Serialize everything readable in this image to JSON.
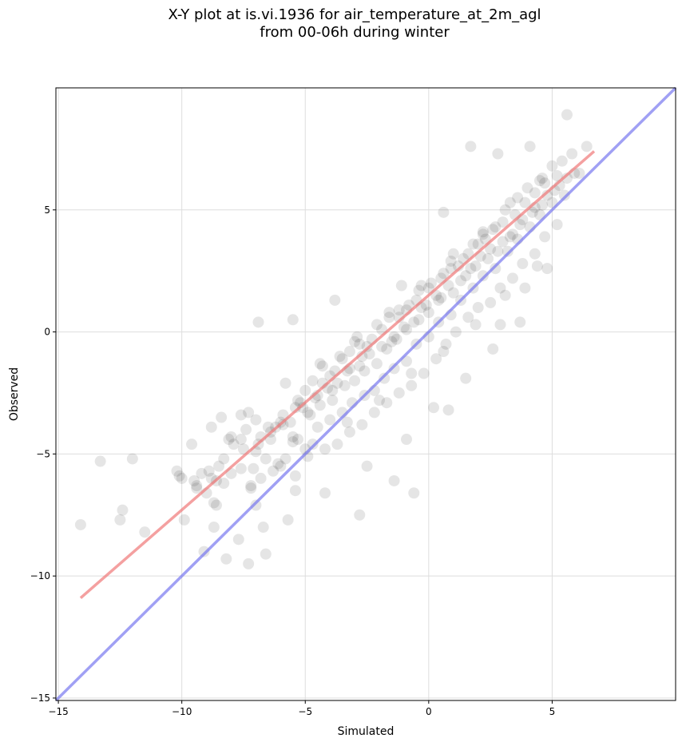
{
  "chart_data": {
    "type": "scatter",
    "title_line1": "X-Y plot at is.vi.1936 for air_temperature_at_2m_agl",
    "title_line2": "from 00-06h during winter",
    "xlabel": "Simulated",
    "ylabel": "Observed",
    "xlim": [
      -15.1,
      10.0
    ],
    "ylim": [
      -15.1,
      10.0
    ],
    "xticks": [
      -15,
      -10,
      -5,
      0,
      5
    ],
    "yticks": [
      -15,
      -10,
      -5,
      0,
      5
    ],
    "xtick_labels": [
      "−15",
      "−10",
      "−5",
      "0",
      "5"
    ],
    "ytick_labels": [
      "−15",
      "−10",
      "−5",
      "0",
      "5"
    ],
    "grid": true,
    "point_color": "#000000",
    "fit_line": {
      "x": [
        -14.1,
        6.7
      ],
      "y": [
        -10.9,
        7.4
      ],
      "color": "#f07878"
    },
    "identity_line": {
      "x": [
        -15.1,
        10.0
      ],
      "y": [
        -15.1,
        10.0
      ],
      "color": "#7878f0"
    },
    "points": {
      "x": [
        -14.1,
        -13.3,
        -12.0,
        -12.4,
        -12.5,
        -11.5,
        -10.1,
        -10.0,
        -9.9,
        -9.6,
        -9.5,
        -9.4,
        -9.2,
        -9.0,
        -8.8,
        -8.7,
        -8.6,
        -8.7,
        -8.5,
        -8.4,
        -8.1,
        -8.3,
        -7.9,
        -7.6,
        -7.4,
        -7.3,
        -7.1,
        -7.0,
        -6.8,
        -6.4,
        -6.0,
        -5.8,
        -5.5,
        -5.4,
        -5.2,
        -4.9,
        -4.5,
        -4.3,
        -3.9,
        -3.8,
        -3.5,
        -3.2,
        -2.8,
        -2.7,
        -2.3,
        -1.9,
        -1.5,
        -1.2,
        -0.9,
        -0.5,
        -0.3,
        0.0,
        0.3,
        0.6,
        0.9,
        1.2,
        1.6,
        2.0,
        2.3,
        2.6,
        3.0,
        3.5,
        3.9,
        4.3,
        4.7,
        5.2,
        5.8,
        -7.0,
        -6.5,
        -5.9,
        -5.3,
        -5.0,
        -4.7,
        -4.3,
        -4.0,
        -3.6,
        -3.2,
        -2.9,
        -2.5,
        -2.1,
        -1.6,
        -1.2,
        -0.8,
        -0.4,
        0.1,
        0.5,
        0.9,
        1.4,
        1.8,
        2.2,
        2.7,
        3.1,
        3.6,
        4.0,
        4.5,
        5.0,
        5.4,
        -8.0,
        -7.5,
        -6.9,
        -6.2,
        -5.6,
        -5.1,
        -4.6,
        -4.1,
        -3.7,
        -3.3,
        -2.8,
        -2.4,
        -1.9,
        -1.4,
        -1.0,
        -0.6,
        -0.1,
        0.4,
        0.8,
        1.3,
        1.7,
        2.1,
        2.5,
        3.0,
        3.4,
        3.8,
        4.3,
        4.8,
        5.3,
        5.9,
        -8.9,
        -8.3,
        -7.6,
        -7.0,
        -6.4,
        -5.9,
        -5.3,
        -4.8,
        -4.4,
        -3.9,
        -3.4,
        -3.0,
        -2.6,
        -2.1,
        -1.7,
        -1.3,
        -0.9,
        -0.4,
        0.0,
        0.5,
        1.0,
        1.5,
        1.9,
        2.4,
        2.8,
        3.3,
        3.7,
        4.2,
        4.6,
        5.1,
        5.6,
        6.1,
        -10.2,
        -9.4,
        -8.8,
        -8.0,
        -7.2,
        -6.6,
        -6.0,
        -5.5,
        -5.0,
        -4.5,
        -4.0,
        -3.5,
        -3.1,
        -2.6,
        -2.2,
        -1.8,
        -1.4,
        -0.9,
        -0.5,
        0.0,
        0.4,
        0.9,
        1.3,
        1.8,
        2.2,
        2.7,
        3.2,
        3.6,
        4.1,
        4.5,
        5.0,
        5.5,
        -7.2,
        -6.8,
        -6.1,
        -5.4,
        -4.9,
        -4.2,
        -3.7,
        -3.2,
        -2.7,
        -2.2,
        -1.7,
        -1.2,
        -0.7,
        -0.2,
        0.3,
        0.7,
        1.1,
        1.6,
        2.0,
        2.5,
        2.9,
        3.4,
        3.8,
        4.3,
        4.7,
        5.2,
        -7.6,
        -5.8,
        -4.4,
        -3.0,
        -1.6,
        -0.3,
        1.0,
        2.2,
        3.3,
        4.6,
        -8.6,
        -6.3,
        -4.7,
        -3.3,
        -2.0,
        -0.7,
        0.6,
        1.9,
        3.1,
        4.4,
        -9.1,
        -7.7,
        -6.6,
        -5.7,
        -4.2,
        -2.5,
        -0.9,
        0.2,
        1.5,
        2.6,
        3.7,
        4.8,
        -8.2,
        -7.3,
        -6.7,
        -5.4,
        -2.8,
        -1.4,
        -0.6,
        0.8,
        2.9,
        3.9,
        -6.9,
        -5.5,
        -3.8,
        -1.1,
        0.6,
        1.7,
        2.8,
        4.1,
        5.6,
        6.4
      ],
      "y": [
        -7.9,
        -5.3,
        -5.2,
        -7.3,
        -7.7,
        -8.2,
        -5.9,
        -6.0,
        -7.7,
        -4.6,
        -6.1,
        -6.4,
        -5.8,
        -6.6,
        -3.9,
        -7.0,
        -6.1,
        -8.0,
        -5.5,
        -3.5,
        -4.4,
        -6.2,
        -4.6,
        -4.4,
        -4.0,
        -3.3,
        -5.6,
        -7.1,
        -4.3,
        -4.1,
        -3.7,
        -5.2,
        -4.3,
        -3.1,
        -2.9,
        -3.3,
        -2.6,
        -2.1,
        -2.4,
        -1.6,
        -1.1,
        -1.5,
        -0.5,
        -1.0,
        -0.3,
        0.1,
        -0.4,
        0.6,
        0.9,
        1.3,
        1.0,
        1.8,
        1.5,
        2.4,
        2.6,
        2.7,
        3.2,
        3.6,
        3.8,
        4.2,
        4.5,
        4.8,
        5.3,
        5.7,
        6.1,
        6.4,
        7.3,
        -3.6,
        -3.9,
        -3.4,
        -2.8,
        -2.4,
        -2.0,
        -1.4,
        -1.8,
        -1.0,
        -0.8,
        -0.2,
        -0.6,
        0.3,
        0.6,
        0.9,
        1.1,
        1.7,
        2.0,
        2.2,
        2.9,
        3.0,
        3.6,
        4.1,
        4.3,
        5.0,
        5.5,
        5.9,
        6.2,
        6.8,
        7.0,
        -4.3,
        -4.8,
        -4.6,
        -3.9,
        -3.7,
        -3.1,
        -2.7,
        -2.3,
        -2.1,
        -1.6,
        -1.4,
        -0.9,
        -0.6,
        -0.2,
        0.2,
        0.4,
        1.1,
        1.3,
        1.9,
        2.1,
        2.6,
        3.1,
        3.4,
        3.7,
        4.0,
        4.6,
        5.1,
        5.6,
        6.0,
        6.5,
        -5.7,
        -5.2,
        -5.6,
        -4.9,
        -4.4,
        -3.8,
        -4.4,
        -3.4,
        -3.0,
        -2.8,
        -2.2,
        -2.0,
        -1.6,
        -1.3,
        -0.7,
        -0.3,
        0.1,
        0.5,
        0.8,
        1.4,
        1.6,
        2.3,
        2.7,
        3.0,
        3.3,
        3.9,
        4.4,
        4.9,
        5.2,
        5.8,
        6.3,
        6.5,
        -5.7,
        -6.3,
        -6.0,
        -5.8,
        -6.3,
        -5.2,
        -5.5,
        -4.5,
        -4.8,
        -3.9,
        -3.6,
        -3.3,
        -2.9,
        -2.6,
        -2.4,
        -1.9,
        -1.5,
        -1.2,
        -0.5,
        -0.2,
        0.4,
        0.7,
        1.3,
        1.8,
        2.3,
        2.6,
        3.3,
        3.8,
        4.3,
        4.8,
        5.3,
        5.6,
        -6.4,
        -6.0,
        -5.4,
        -5.9,
        -5.1,
        -4.8,
        -4.6,
        -4.1,
        -3.8,
        -3.3,
        -2.9,
        -2.5,
        -2.2,
        -1.7,
        -1.1,
        -0.5,
        0.0,
        0.6,
        1.0,
        1.2,
        1.8,
        2.2,
        2.8,
        3.2,
        3.9,
        4.4,
        -3.4,
        -2.1,
        -1.3,
        -0.4,
        0.8,
        1.9,
        3.2,
        4.0,
        5.3,
        6.3,
        -7.1,
        -5.7,
        -4.6,
        -3.7,
        -2.8,
        -1.7,
        -0.8,
        0.3,
        1.5,
        2.7,
        -9.0,
        -8.5,
        -9.1,
        -7.7,
        -6.6,
        -5.5,
        -4.4,
        -3.1,
        -1.9,
        -0.7,
        0.4,
        2.6,
        -9.3,
        -9.5,
        -8.0,
        -6.5,
        -7.5,
        -6.1,
        -6.6,
        -3.2,
        0.3,
        1.8,
        0.4,
        0.5,
        1.3,
        1.9,
        4.9,
        7.6,
        7.3,
        7.6,
        8.9,
        7.6
      ]
    }
  }
}
